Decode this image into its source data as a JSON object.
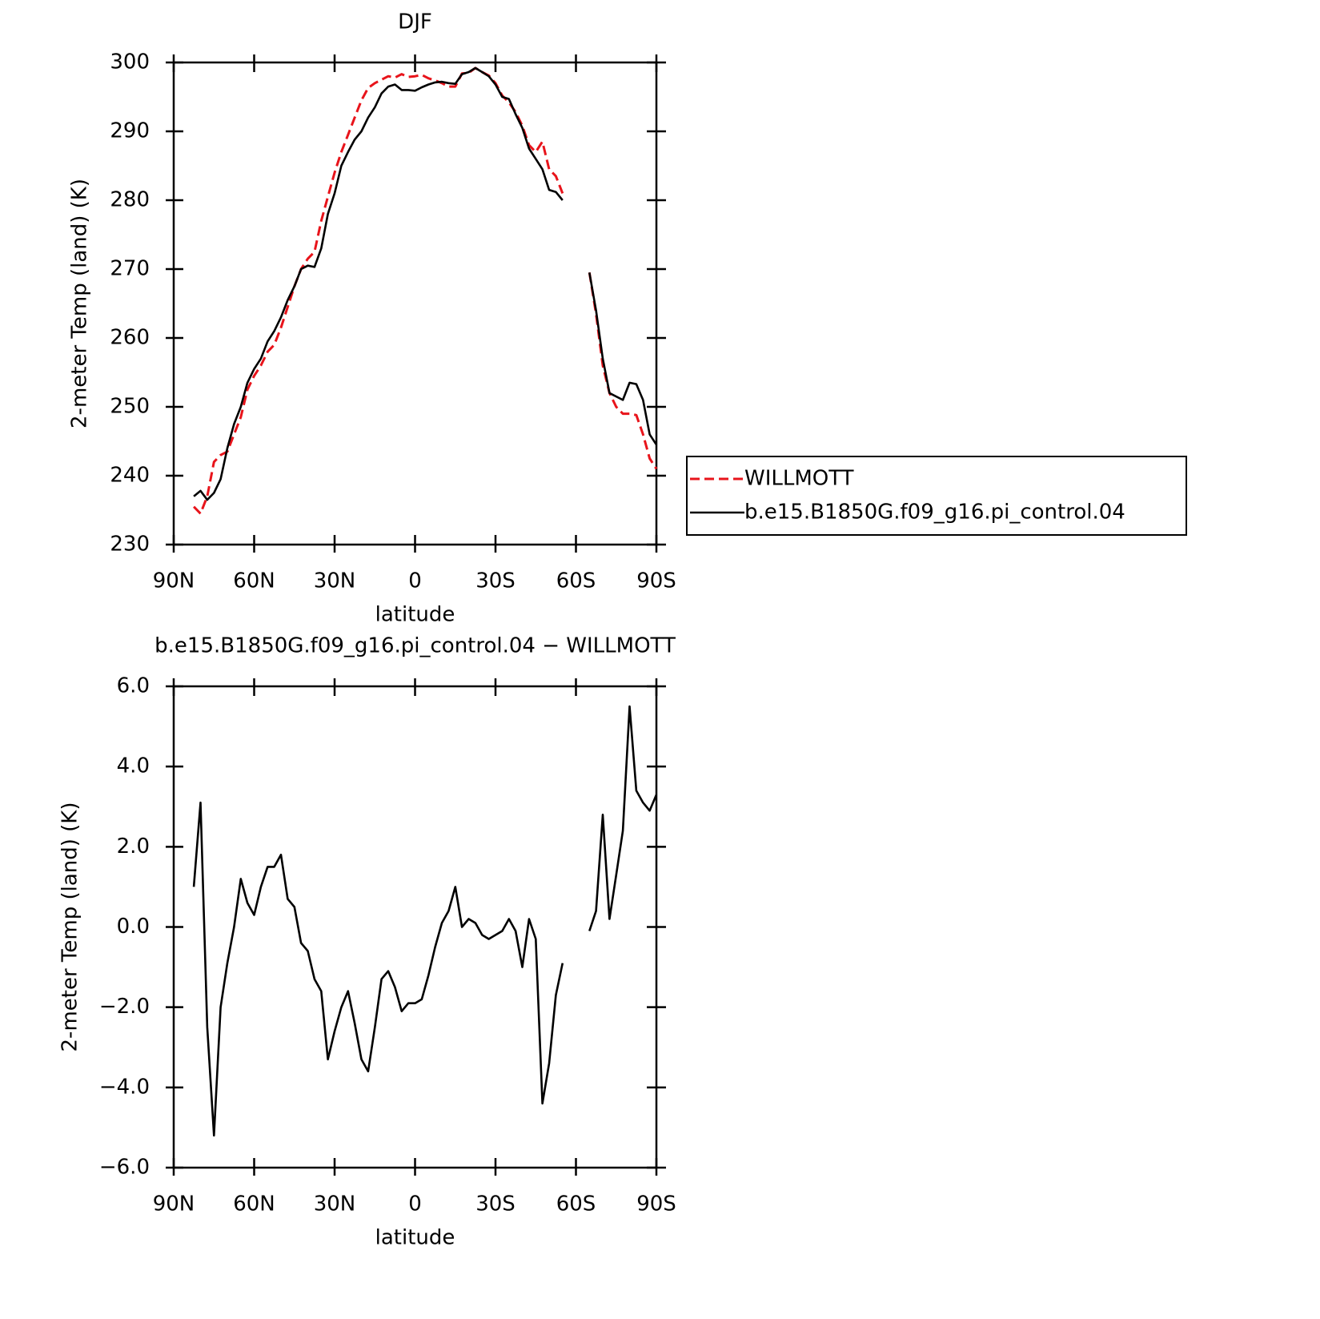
{
  "chart_data": [
    {
      "type": "line",
      "title": "DJF",
      "xlabel": "latitude",
      "ylabel": "2-meter Temp (land) (K)",
      "x": [
        82.5,
        80,
        77.5,
        75,
        72.5,
        70,
        67.5,
        65,
        62.5,
        60,
        57.5,
        55,
        52.5,
        50,
        47.5,
        45,
        42.5,
        40,
        37.5,
        35,
        32.5,
        30,
        27.5,
        25,
        22.5,
        20,
        17.5,
        15,
        12.5,
        10,
        7.5,
        5,
        2.5,
        0,
        -2.5,
        -5,
        -7.5,
        -10,
        -12.5,
        -15,
        -17.5,
        -20,
        -22.5,
        -25,
        -27.5,
        -30,
        -32.5,
        -35,
        -37.5,
        -40,
        -42.5,
        -45,
        -47.5,
        -50,
        -52.5,
        -55,
        -60,
        -65,
        -67.5,
        -70,
        -72.5,
        -75,
        -77.5,
        -80,
        -82.5,
        -85,
        -87.5,
        -90
      ],
      "series": [
        {
          "name": "WILLMOTT",
          "color": "#e8141b",
          "dashed": true,
          "values": [
            235.5,
            234.5,
            237,
            242,
            243,
            243.5,
            246,
            248.5,
            252.5,
            254.5,
            256,
            258,
            259,
            261.5,
            264.5,
            267.5,
            270,
            271.5,
            272.5,
            277,
            280.5,
            284,
            287,
            289.5,
            292,
            294.5,
            296.3,
            297,
            297.5,
            298,
            297.8,
            298.3,
            297.9,
            298,
            298.2,
            297.7,
            297.4,
            297,
            296.5,
            296.5,
            298.4,
            298.5,
            299.2,
            298.6,
            298.1,
            297,
            295.2,
            294.2,
            292.8,
            290.8,
            288,
            287,
            288.5,
            284.5,
            283.5,
            281,
            null,
            269.5,
            263.5,
            256,
            252,
            250,
            249,
            249,
            248.8,
            246,
            242.5,
            241
          ]
        },
        {
          "name": "b.e15.B1850G.f09_g16.pi_control.04",
          "color": "#000000",
          "dashed": false,
          "values": [
            237,
            237.8,
            236.5,
            237.5,
            239.5,
            244,
            247.5,
            250,
            253.5,
            255.5,
            257,
            259.5,
            261,
            263,
            265.5,
            267.5,
            270,
            270.5,
            270.3,
            273,
            278,
            281,
            285,
            287,
            288.8,
            290,
            292,
            293.5,
            295.5,
            296.5,
            296.8,
            296,
            296,
            295.9,
            296.4,
            296.8,
            297.1,
            297.2,
            297,
            296.9,
            298.3,
            298.6,
            299.2,
            298.6,
            298,
            296.8,
            295,
            294.7,
            292.5,
            290.5,
            287.5,
            286,
            284.5,
            281.5,
            281.2,
            280,
            null,
            269.5,
            264,
            257,
            252,
            251.5,
            251,
            253.5,
            253.3,
            251,
            246,
            244.5
          ]
        }
      ],
      "xlim": [
        90,
        -90
      ],
      "xticks": [
        {
          "value": 90,
          "label": "90N"
        },
        {
          "value": 60,
          "label": "60N"
        },
        {
          "value": 30,
          "label": "30N"
        },
        0,
        {
          "value": -30,
          "label": "30S"
        },
        {
          "value": -60,
          "label": "60S"
        },
        {
          "value": -90,
          "label": "90S"
        }
      ],
      "ylim": [
        230,
        300
      ],
      "yticks": [
        230,
        240,
        250,
        260,
        270,
        280,
        290,
        300
      ],
      "legend": "right"
    },
    {
      "type": "line",
      "title": "b.e15.B1850G.f09_g16.pi_control.04 − WILLMOTT",
      "xlabel": "latitude",
      "ylabel": "2-meter Temp (land) (K)",
      "x": [
        82.5,
        80,
        77.5,
        75,
        72.5,
        70,
        67.5,
        65,
        62.5,
        60,
        57.5,
        55,
        52.5,
        50,
        47.5,
        45,
        42.5,
        40,
        37.5,
        35,
        32.5,
        30,
        27.5,
        25,
        22.5,
        20,
        17.5,
        15,
        12.5,
        10,
        7.5,
        5,
        2.5,
        0,
        -2.5,
        -5,
        -7.5,
        -10,
        -12.5,
        -15,
        -17.5,
        -20,
        -22.5,
        -25,
        -27.5,
        -30,
        -32.5,
        -35,
        -37.5,
        -40,
        -42.5,
        -45,
        -47.5,
        -50,
        -52.5,
        -55,
        -60,
        -65,
        -67.5,
        -70,
        -72.5,
        -75,
        -77.5,
        -80,
        -82.5,
        -85,
        -87.5,
        -90
      ],
      "color": "#000000",
      "values": [
        1.0,
        3.1,
        -2.5,
        -5.2,
        -2.0,
        -0.9,
        0.0,
        1.2,
        0.6,
        0.3,
        1.0,
        1.5,
        1.5,
        1.8,
        0.7,
        0.5,
        -0.4,
        -0.6,
        -1.3,
        -1.6,
        -3.3,
        -2.6,
        -2.0,
        -1.6,
        -2.4,
        -3.3,
        -3.6,
        -2.5,
        -1.3,
        -1.1,
        -1.5,
        -2.1,
        -1.9,
        -1.9,
        -1.8,
        -1.2,
        -0.5,
        0.1,
        0.4,
        1.0,
        0.0,
        0.2,
        0.1,
        -0.2,
        -0.3,
        -0.2,
        -0.1,
        0.2,
        -0.1,
        -1.0,
        0.2,
        -0.3,
        -4.4,
        -3.4,
        -1.7,
        -0.9,
        null,
        -0.1,
        0.4,
        2.8,
        0.2,
        1.3,
        2.4,
        5.5,
        3.4,
        3.1,
        2.9,
        3.3
      ],
      "xlim": [
        90,
        -90
      ],
      "xticks": [
        {
          "value": 90,
          "label": "90N"
        },
        {
          "value": 60,
          "label": "60N"
        },
        {
          "value": 30,
          "label": "30N"
        },
        0,
        {
          "value": -30,
          "label": "30S"
        },
        {
          "value": -60,
          "label": "60S"
        },
        {
          "value": -90,
          "label": "90S"
        }
      ],
      "ylim": [
        -6,
        6
      ],
      "yticks": [
        {
          "value": -6,
          "label": "−6.0"
        },
        {
          "value": -4,
          "label": "−4.0"
        },
        {
          "value": -2,
          "label": "−2.0"
        },
        {
          "value": 0,
          "label": "0.0"
        },
        {
          "value": 2,
          "label": "2.0"
        },
        {
          "value": 4,
          "label": "4.0"
        },
        {
          "value": 6,
          "label": "6.0"
        }
      ]
    }
  ]
}
